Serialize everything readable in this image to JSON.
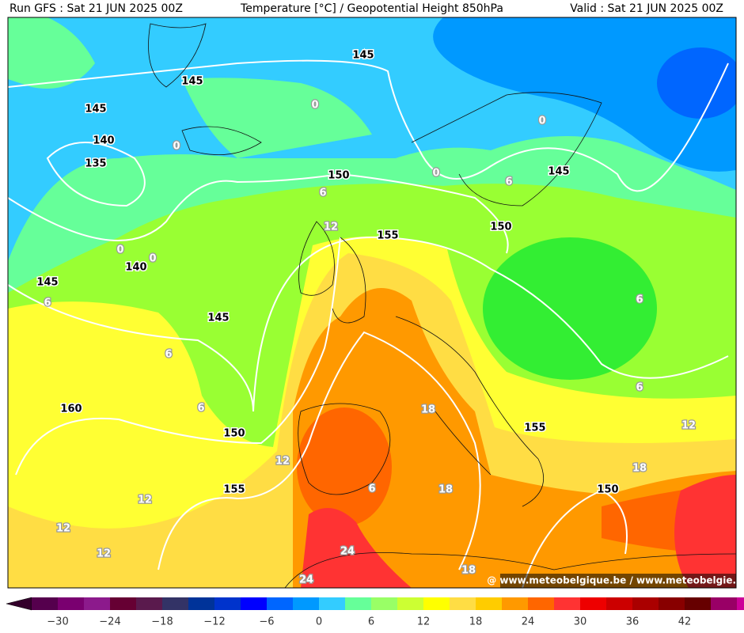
{
  "header": {
    "left": "Run GFS : Sat 21 JUN 2025 00Z",
    "center": "Temperature [°C] / Geopotential Height 850hPa",
    "right": "Valid : Sat 21 JUN 2025 00Z"
  },
  "height_labels": [
    "145",
    "145",
    "145",
    "140",
    "135",
    "150",
    "145",
    "150",
    "155",
    "140",
    "145",
    "145",
    "160",
    "150",
    "155",
    "155",
    "150"
  ],
  "temperature_labels": [
    "0",
    "0",
    "0",
    "0",
    "6",
    "6",
    "12",
    "0",
    "0",
    "6",
    "6",
    "6",
    "6",
    "6",
    "18",
    "12",
    "12",
    "18",
    "12",
    "6",
    "18",
    "12",
    "12",
    "24",
    "24",
    "18"
  ],
  "colorbar": {
    "labels": [
      "−30",
      "−24",
      "−18",
      "−12",
      "−6",
      "0",
      "6",
      "12",
      "18",
      "24",
      "30",
      "36",
      "42"
    ]
  },
  "watermark": "@ www.meteobelgique.be / www.meteobelgie.be"
}
